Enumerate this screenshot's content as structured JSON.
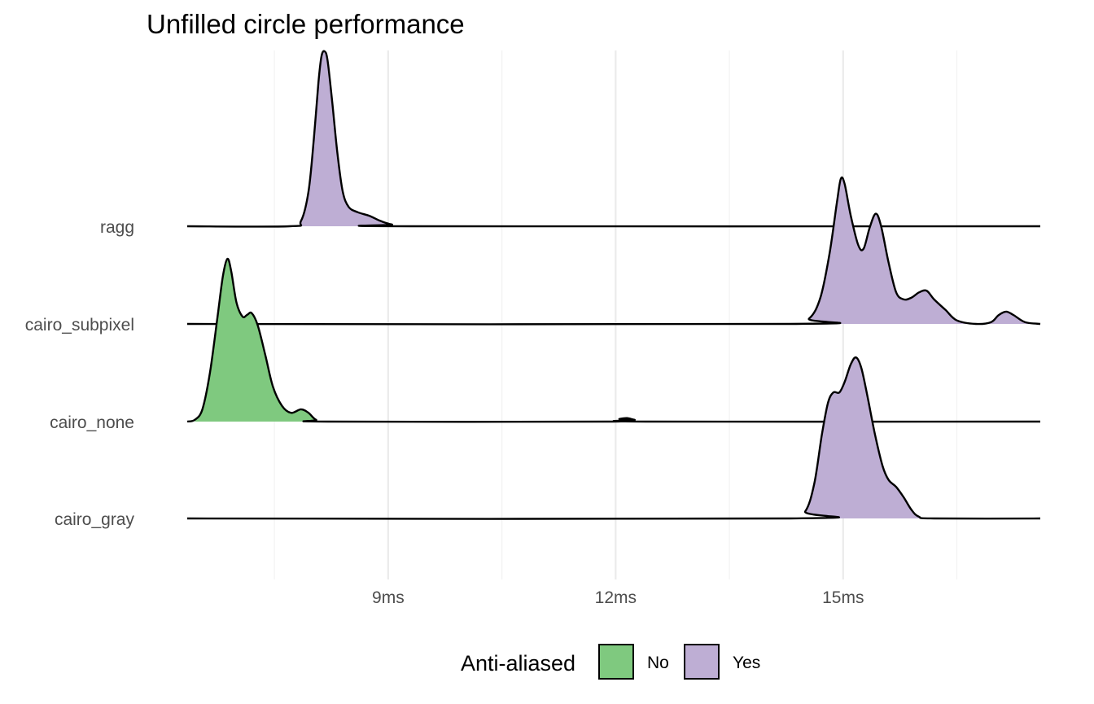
{
  "chart_data": {
    "type": "ridgeline",
    "title": "Unfilled circle performance",
    "xlabel": "",
    "ylabel": "",
    "x_unit": "ms",
    "xlim": [
      6.35,
      17.6
    ],
    "x_major_ticks": [
      9,
      12,
      15
    ],
    "x_tick_labels": [
      "9ms",
      "12ms",
      "15ms"
    ],
    "x_minor_ticks": [
      7.5,
      10.5,
      13.5,
      16.5
    ],
    "grid": true,
    "categories": [
      "ragg",
      "cairo_subpixel",
      "cairo_none",
      "cairo_gray"
    ],
    "legend": {
      "title": "Anti-aliased",
      "position": "bottom",
      "items": [
        {
          "label": "No",
          "color": "#7fc97f"
        },
        {
          "label": "Yes",
          "color": "#beaed4"
        }
      ]
    },
    "series": [
      {
        "category": "ragg",
        "anti_aliased": "Yes",
        "color": "#beaed4",
        "fill_range": [
          7.8,
          9.3
        ],
        "density": [
          [
            6.35,
            0
          ],
          [
            7.7,
            0
          ],
          [
            7.85,
            0.03
          ],
          [
            7.95,
            0.2
          ],
          [
            8.02,
            0.5
          ],
          [
            8.08,
            0.82
          ],
          [
            8.12,
            0.97
          ],
          [
            8.16,
            1.0
          ],
          [
            8.2,
            0.95
          ],
          [
            8.26,
            0.72
          ],
          [
            8.33,
            0.42
          ],
          [
            8.4,
            0.2
          ],
          [
            8.48,
            0.11
          ],
          [
            8.6,
            0.08
          ],
          [
            8.75,
            0.06
          ],
          [
            8.9,
            0.03
          ],
          [
            9.05,
            0.01
          ],
          [
            9.3,
            0
          ],
          [
            17.6,
            0
          ]
        ]
      },
      {
        "category": "cairo_subpixel",
        "anti_aliased": "Yes",
        "color": "#beaed4",
        "fill_range": [
          14.35,
          17.6
        ],
        "density": [
          [
            6.35,
            0
          ],
          [
            14.3,
            0
          ],
          [
            14.55,
            0.03
          ],
          [
            14.7,
            0.15
          ],
          [
            14.82,
            0.4
          ],
          [
            14.92,
            0.7
          ],
          [
            14.97,
            0.83
          ],
          [
            15.02,
            0.8
          ],
          [
            15.1,
            0.62
          ],
          [
            15.2,
            0.45
          ],
          [
            15.27,
            0.43
          ],
          [
            15.35,
            0.55
          ],
          [
            15.43,
            0.63
          ],
          [
            15.5,
            0.56
          ],
          [
            15.6,
            0.35
          ],
          [
            15.7,
            0.18
          ],
          [
            15.8,
            0.14
          ],
          [
            15.9,
            0.15
          ],
          [
            16.0,
            0.18
          ],
          [
            16.1,
            0.19
          ],
          [
            16.2,
            0.14
          ],
          [
            16.35,
            0.08
          ],
          [
            16.5,
            0.02
          ],
          [
            16.75,
            0
          ],
          [
            16.95,
            0.01
          ],
          [
            17.05,
            0.05
          ],
          [
            17.15,
            0.07
          ],
          [
            17.25,
            0.05
          ],
          [
            17.4,
            0.01
          ],
          [
            17.6,
            0
          ]
        ]
      },
      {
        "category": "cairo_none",
        "anti_aliased": "No",
        "color": "#7fc97f",
        "fill_range": [
          6.45,
          12.6
        ],
        "density": [
          [
            6.35,
            0
          ],
          [
            6.45,
            0.01
          ],
          [
            6.55,
            0.07
          ],
          [
            6.65,
            0.28
          ],
          [
            6.75,
            0.6
          ],
          [
            6.82,
            0.83
          ],
          [
            6.88,
            0.93
          ],
          [
            6.93,
            0.86
          ],
          [
            7.0,
            0.68
          ],
          [
            7.08,
            0.6
          ],
          [
            7.14,
            0.61
          ],
          [
            7.2,
            0.62
          ],
          [
            7.28,
            0.55
          ],
          [
            7.38,
            0.38
          ],
          [
            7.48,
            0.2
          ],
          [
            7.6,
            0.09
          ],
          [
            7.72,
            0.05
          ],
          [
            7.85,
            0.07
          ],
          [
            7.95,
            0.05
          ],
          [
            8.05,
            0.01
          ],
          [
            8.2,
            0
          ],
          [
            11.9,
            0
          ],
          [
            12.05,
            0.015
          ],
          [
            12.15,
            0.02
          ],
          [
            12.25,
            0.01
          ],
          [
            12.4,
            0
          ],
          [
            17.6,
            0
          ]
        ]
      },
      {
        "category": "cairo_gray",
        "anti_aliased": "Yes",
        "color": "#beaed4",
        "fill_range": [
          14.3,
          16.6
        ],
        "density": [
          [
            6.35,
            0
          ],
          [
            14.3,
            0
          ],
          [
            14.5,
            0.04
          ],
          [
            14.62,
            0.2
          ],
          [
            14.72,
            0.48
          ],
          [
            14.8,
            0.66
          ],
          [
            14.87,
            0.72
          ],
          [
            14.95,
            0.72
          ],
          [
            15.02,
            0.78
          ],
          [
            15.1,
            0.88
          ],
          [
            15.17,
            0.92
          ],
          [
            15.24,
            0.86
          ],
          [
            15.32,
            0.7
          ],
          [
            15.42,
            0.48
          ],
          [
            15.52,
            0.3
          ],
          [
            15.6,
            0.22
          ],
          [
            15.7,
            0.18
          ],
          [
            15.8,
            0.12
          ],
          [
            15.9,
            0.05
          ],
          [
            16.0,
            0.01
          ],
          [
            16.2,
            0
          ],
          [
            17.6,
            0
          ]
        ]
      }
    ]
  }
}
